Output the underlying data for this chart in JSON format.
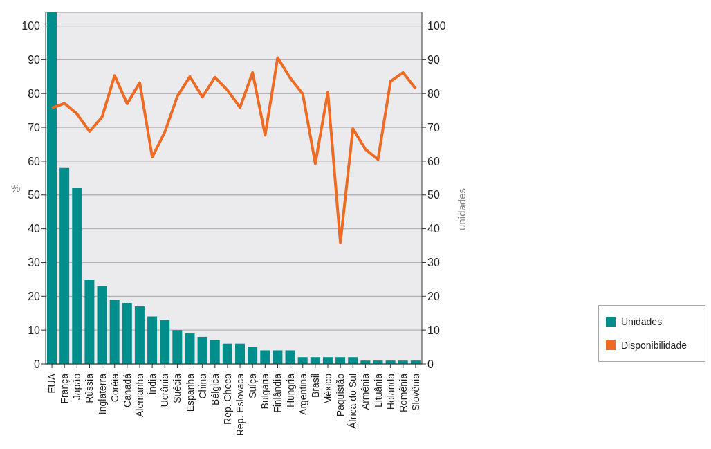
{
  "chart_data": {
    "type": "bar",
    "ylabel": "%",
    "y2label": "unidades",
    "categories": [
      "EUA",
      "França",
      "Japão",
      "Rússia",
      "Inglaterra",
      "Coréia",
      "Canadá",
      "Alemanha",
      "Índia",
      "Ucrânia",
      "Suécia",
      "Espanha",
      "China",
      "Bélgica",
      "Rep. Checa",
      "Rep. Eslovaca",
      "Suíça",
      "Bulgária",
      "Finlândia",
      "Hungria",
      "Argentina",
      "Brasil",
      "México",
      "Paquistão",
      "África do Sul",
      "Armênia",
      "Lituânia",
      "Holanda",
      "Romênia",
      "Slovênia"
    ],
    "series": [
      {
        "name": "Unidades",
        "axis": "y2",
        "color": "#008e8c",
        "values": [
          104,
          58,
          52,
          25,
          23,
          19,
          18,
          17,
          14,
          13,
          10,
          9,
          8,
          7,
          6,
          6,
          5,
          4,
          4,
          4,
          2,
          2,
          2,
          2,
          2,
          1,
          1,
          1,
          1,
          1
        ]
      },
      {
        "name": "Disponibilidade",
        "type": "line",
        "color": "#ef6a23",
        "values": [
          75.7,
          77.1,
          74,
          68.8,
          73.1,
          85.3,
          77,
          83.2,
          61.2,
          68.6,
          79.2,
          85,
          79,
          84.8,
          81,
          75.9,
          86.2,
          67.7,
          90.6,
          84.6,
          79.9,
          59.3,
          80.4,
          35.9,
          69.6,
          63.5,
          60.5,
          83.6,
          86.2,
          81.5
        ]
      }
    ],
    "ylim": [
      0,
      104
    ],
    "yticks": [
      0,
      10,
      20,
      30,
      40,
      50,
      60,
      70,
      80,
      90,
      100
    ],
    "y2lim": [
      0,
      104
    ],
    "y2ticks": [
      0,
      10,
      20,
      30,
      40,
      50,
      60,
      70,
      80,
      90,
      100
    ],
    "grid": "y",
    "legend": "bottom right",
    "marker": "none",
    "line_style": "solid"
  }
}
